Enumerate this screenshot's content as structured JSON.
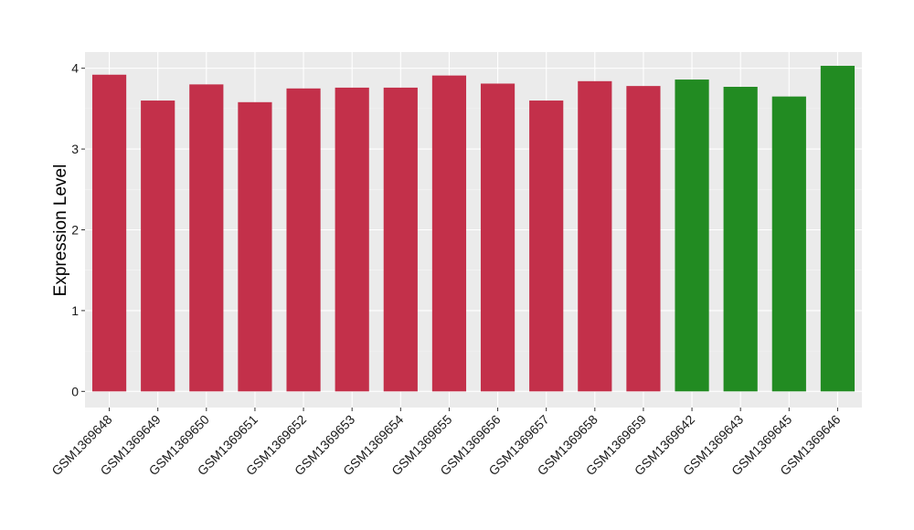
{
  "chart_data": {
    "type": "bar",
    "title": "",
    "xlabel": "",
    "ylabel": "Expression Level",
    "categories": [
      "GSM1369648",
      "GSM1369649",
      "GSM1369650",
      "GSM1369651",
      "GSM1369652",
      "GSM1369653",
      "GSM1369654",
      "GSM1369655",
      "GSM1369656",
      "GSM1369657",
      "GSM1369658",
      "GSM1369659",
      "GSM1369642",
      "GSM1369643",
      "GSM1369645",
      "GSM1369646"
    ],
    "values": [
      3.92,
      3.6,
      3.8,
      3.58,
      3.75,
      3.76,
      3.76,
      3.91,
      3.81,
      3.6,
      3.84,
      3.78,
      3.86,
      3.77,
      3.65,
      4.03
    ],
    "bar_colors": [
      "#c3304a",
      "#c3304a",
      "#c3304a",
      "#c3304a",
      "#c3304a",
      "#c3304a",
      "#c3304a",
      "#c3304a",
      "#c3304a",
      "#c3304a",
      "#c3304a",
      "#c3304a",
      "#228b22",
      "#228b22",
      "#228b22",
      "#228b22"
    ],
    "ylim": [
      -0.2,
      4.2
    ],
    "yticks": [
      0,
      1,
      2,
      3,
      4
    ],
    "grid": true,
    "panel_background": "#ebebeb",
    "legend": "none"
  }
}
